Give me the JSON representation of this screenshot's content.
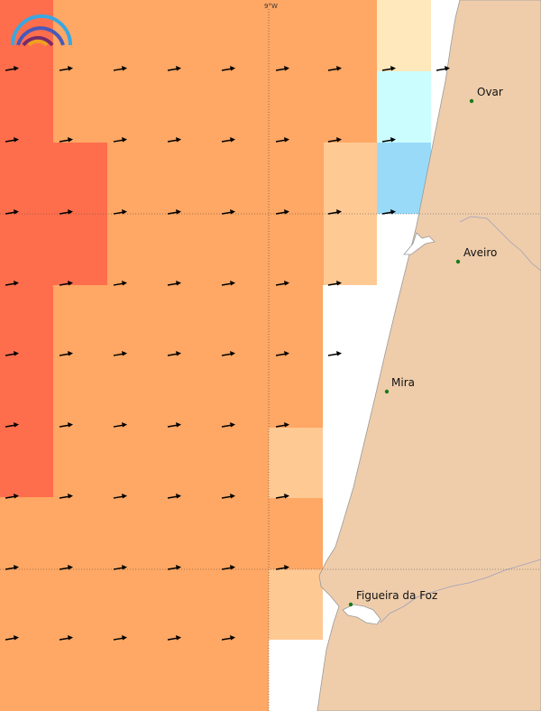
{
  "map": {
    "grid_label": "9°W",
    "colors": {
      "deep_orange": "#ff6e4c",
      "orange": "#ffa764",
      "light_orange": "#ffc994",
      "pale_yellow": "#ffe8bb",
      "pale_cyan": "#ccfdfe",
      "light_blue": "#99daf9",
      "land": "#efcdab",
      "arrow": "#000000"
    },
    "logo": {
      "icon": "rainbow-logo-icon"
    },
    "cities": [
      {
        "name": "Ovar"
      },
      {
        "name": "Aveiro"
      },
      {
        "name": "Mira"
      },
      {
        "name": "Figueira da Foz"
      }
    ]
  }
}
